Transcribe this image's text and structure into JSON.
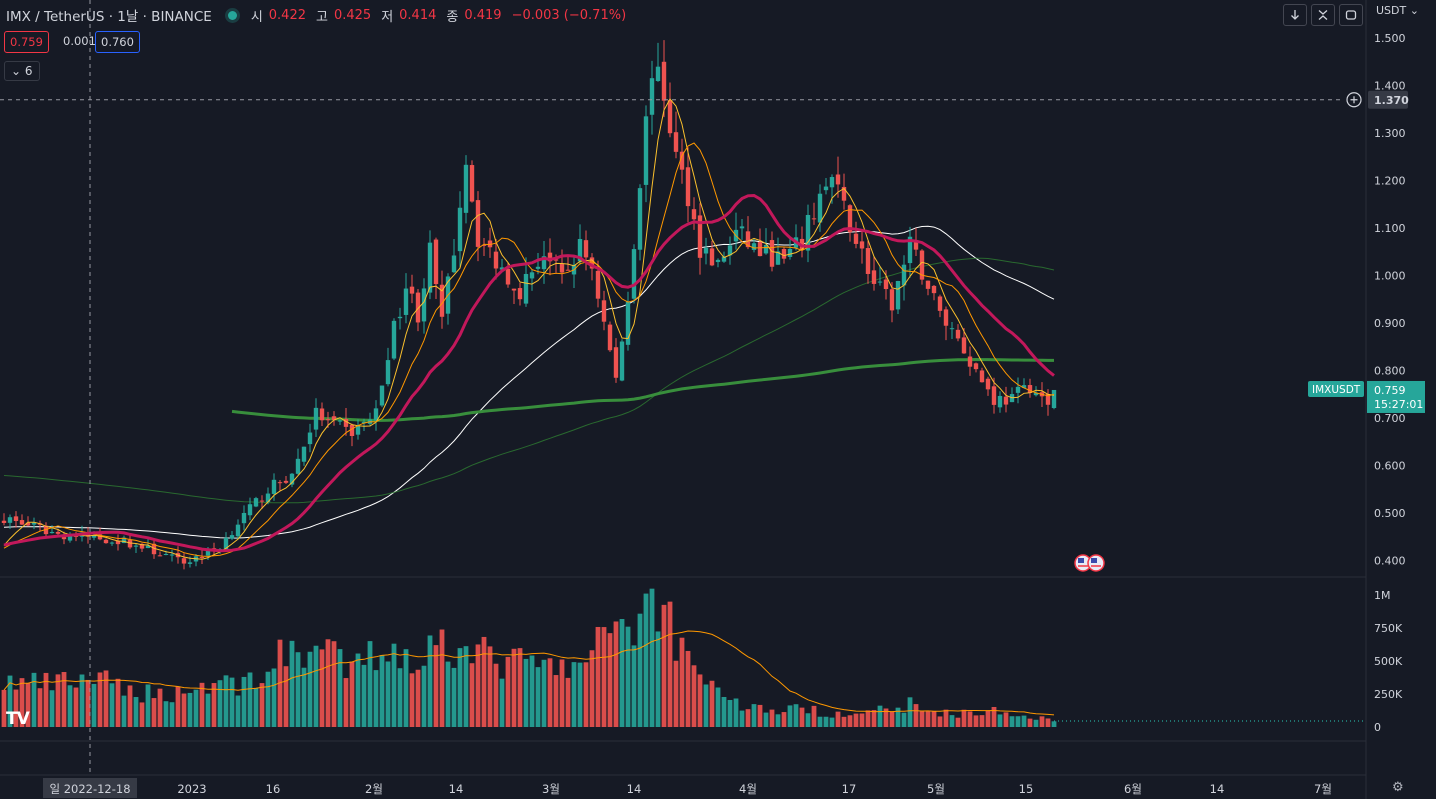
{
  "header": {
    "symbol": "IMX / TetherUS · 1날 · BINANCE",
    "ohlc": [
      {
        "k": "시",
        "v": "0.422"
      },
      {
        "k": "고",
        "v": "0.425"
      },
      {
        "k": "저",
        "v": "0.414"
      },
      {
        "k": "종",
        "v": "0.419"
      }
    ],
    "change": "−0.003 (−0.71%)",
    "bid": "0.759",
    "spread": "0.001",
    "ask": "0.760",
    "indicators_collapsed": "6",
    "currency": "USDT"
  },
  "colors": {
    "up": "#26a69a",
    "down": "#ef5350",
    "bg": "#161a25",
    "grid": "#2a2e39",
    "text": "#d1d4dc"
  },
  "icons": [
    "arrow-down-icon",
    "collapse-icon",
    "maximize-icon",
    "chevron-down-icon",
    "crosshair-plus-icon",
    "settings-gear-icon",
    "tradingview-logo-icon"
  ],
  "chart_data": {
    "type": "candlestick",
    "symbol": "IMXUSDT",
    "y_ticks": [
      "1.500",
      "1.400",
      "1.300",
      "1.200",
      "1.100",
      "1.000",
      "0.900",
      "0.800",
      "0.700",
      "0.600",
      "0.500",
      "0.400"
    ],
    "y_range": [
      0.38,
      1.58
    ],
    "x_labels": [
      "일 2022-12-18",
      "2023",
      "16",
      "2월",
      "14",
      "3월",
      "14",
      "4월",
      "17",
      "5월",
      "15",
      "6월",
      "14",
      "7월"
    ],
    "last_price": {
      "label": "IMXUSDT",
      "value": "0.759",
      "countdown": "15:27:01"
    },
    "crosshair": {
      "price": "1.370",
      "date": "일 2022-12-18"
    },
    "volume_ticks": [
      "1M",
      "750K",
      "500K",
      "250K",
      "0"
    ],
    "moving_averages": [
      {
        "color": "#fbc02d",
        "width": 1
      },
      {
        "color": "#ff9800",
        "width": 1
      },
      {
        "color": "#c2185b",
        "width": 3
      },
      {
        "color": "#ffffff",
        "width": 1
      },
      {
        "color": "#2e7d32",
        "width": 1
      },
      {
        "color": "#388e3c",
        "width": 3
      }
    ],
    "anchors": [
      {
        "d": 0,
        "c": 0.49,
        "v": 340
      },
      {
        "d": 9,
        "c": 0.455,
        "v": 320
      },
      {
        "d": 14,
        "c": 0.45,
        "v": 380
      },
      {
        "d": 20,
        "c": 0.44,
        "v": 280
      },
      {
        "d": 26,
        "c": 0.415,
        "v": 250
      },
      {
        "d": 30,
        "c": 0.395,
        "v": 270
      },
      {
        "d": 36,
        "c": 0.43,
        "v": 350
      },
      {
        "d": 39,
        "c": 0.48,
        "v": 320
      },
      {
        "d": 44,
        "c": 0.55,
        "v": 430
      },
      {
        "d": 48,
        "c": 0.58,
        "v": 600
      },
      {
        "d": 52,
        "c": 0.71,
        "v": 590
      },
      {
        "d": 54,
        "c": 0.69,
        "v": 540
      },
      {
        "d": 58,
        "c": 0.67,
        "v": 420
      },
      {
        "d": 62,
        "c": 0.71,
        "v": 560
      },
      {
        "d": 64,
        "c": 0.84,
        "v": 600
      },
      {
        "d": 67,
        "c": 0.98,
        "v": 560
      },
      {
        "d": 69,
        "c": 0.92,
        "v": 510
      },
      {
        "d": 71,
        "c": 1.05,
        "v": 590
      },
      {
        "d": 73,
        "c": 0.9,
        "v": 650
      },
      {
        "d": 75,
        "c": 1.06,
        "v": 600
      },
      {
        "d": 77,
        "c": 1.25,
        "v": 780
      },
      {
        "d": 79,
        "c": 1.08,
        "v": 550
      },
      {
        "d": 82,
        "c": 1.03,
        "v": 500
      },
      {
        "d": 86,
        "c": 0.97,
        "v": 480
      },
      {
        "d": 90,
        "c": 1.05,
        "v": 460
      },
      {
        "d": 93,
        "c": 0.99,
        "v": 430
      },
      {
        "d": 96,
        "c": 1.06,
        "v": 470
      },
      {
        "d": 98,
        "c": 1.02,
        "v": 500
      },
      {
        "d": 100,
        "c": 0.9,
        "v": 700
      },
      {
        "d": 102,
        "c": 0.78,
        "v": 880
      },
      {
        "d": 104,
        "c": 0.95,
        "v": 780
      },
      {
        "d": 106,
        "c": 1.2,
        "v": 820
      },
      {
        "d": 108,
        "c": 1.44,
        "v": 1000
      },
      {
        "d": 110,
        "c": 1.38,
        "v": 900
      },
      {
        "d": 112,
        "c": 1.25,
        "v": 700
      },
      {
        "d": 114,
        "c": 1.17,
        "v": 520
      },
      {
        "d": 116,
        "c": 1.06,
        "v": 450
      },
      {
        "d": 119,
        "c": 1.02,
        "v": 280
      },
      {
        "d": 122,
        "c": 1.09,
        "v": 180
      },
      {
        "d": 126,
        "c": 1.05,
        "v": 140
      },
      {
        "d": 130,
        "c": 1.03,
        "v": 120
      },
      {
        "d": 133,
        "c": 1.07,
        "v": 150
      },
      {
        "d": 136,
        "c": 1.17,
        "v": 110
      },
      {
        "d": 138,
        "c": 1.2,
        "v": 100
      },
      {
        "d": 140,
        "c": 1.14,
        "v": 110
      },
      {
        "d": 142,
        "c": 1.08,
        "v": 120
      },
      {
        "d": 145,
        "c": 0.98,
        "v": 140
      },
      {
        "d": 148,
        "c": 0.94,
        "v": 100
      },
      {
        "d": 151,
        "c": 1.06,
        "v": 180
      },
      {
        "d": 153,
        "c": 1.01,
        "v": 130
      },
      {
        "d": 156,
        "c": 0.92,
        "v": 110
      },
      {
        "d": 159,
        "c": 0.87,
        "v": 100
      },
      {
        "d": 162,
        "c": 0.8,
        "v": 110
      },
      {
        "d": 165,
        "c": 0.74,
        "v": 120
      },
      {
        "d": 168,
        "c": 0.74,
        "v": 90
      },
      {
        "d": 171,
        "c": 0.77,
        "v": 80
      },
      {
        "d": 174,
        "c": 0.72,
        "v": 70
      },
      {
        "d": 175,
        "c": 0.759,
        "v": 60
      }
    ]
  }
}
